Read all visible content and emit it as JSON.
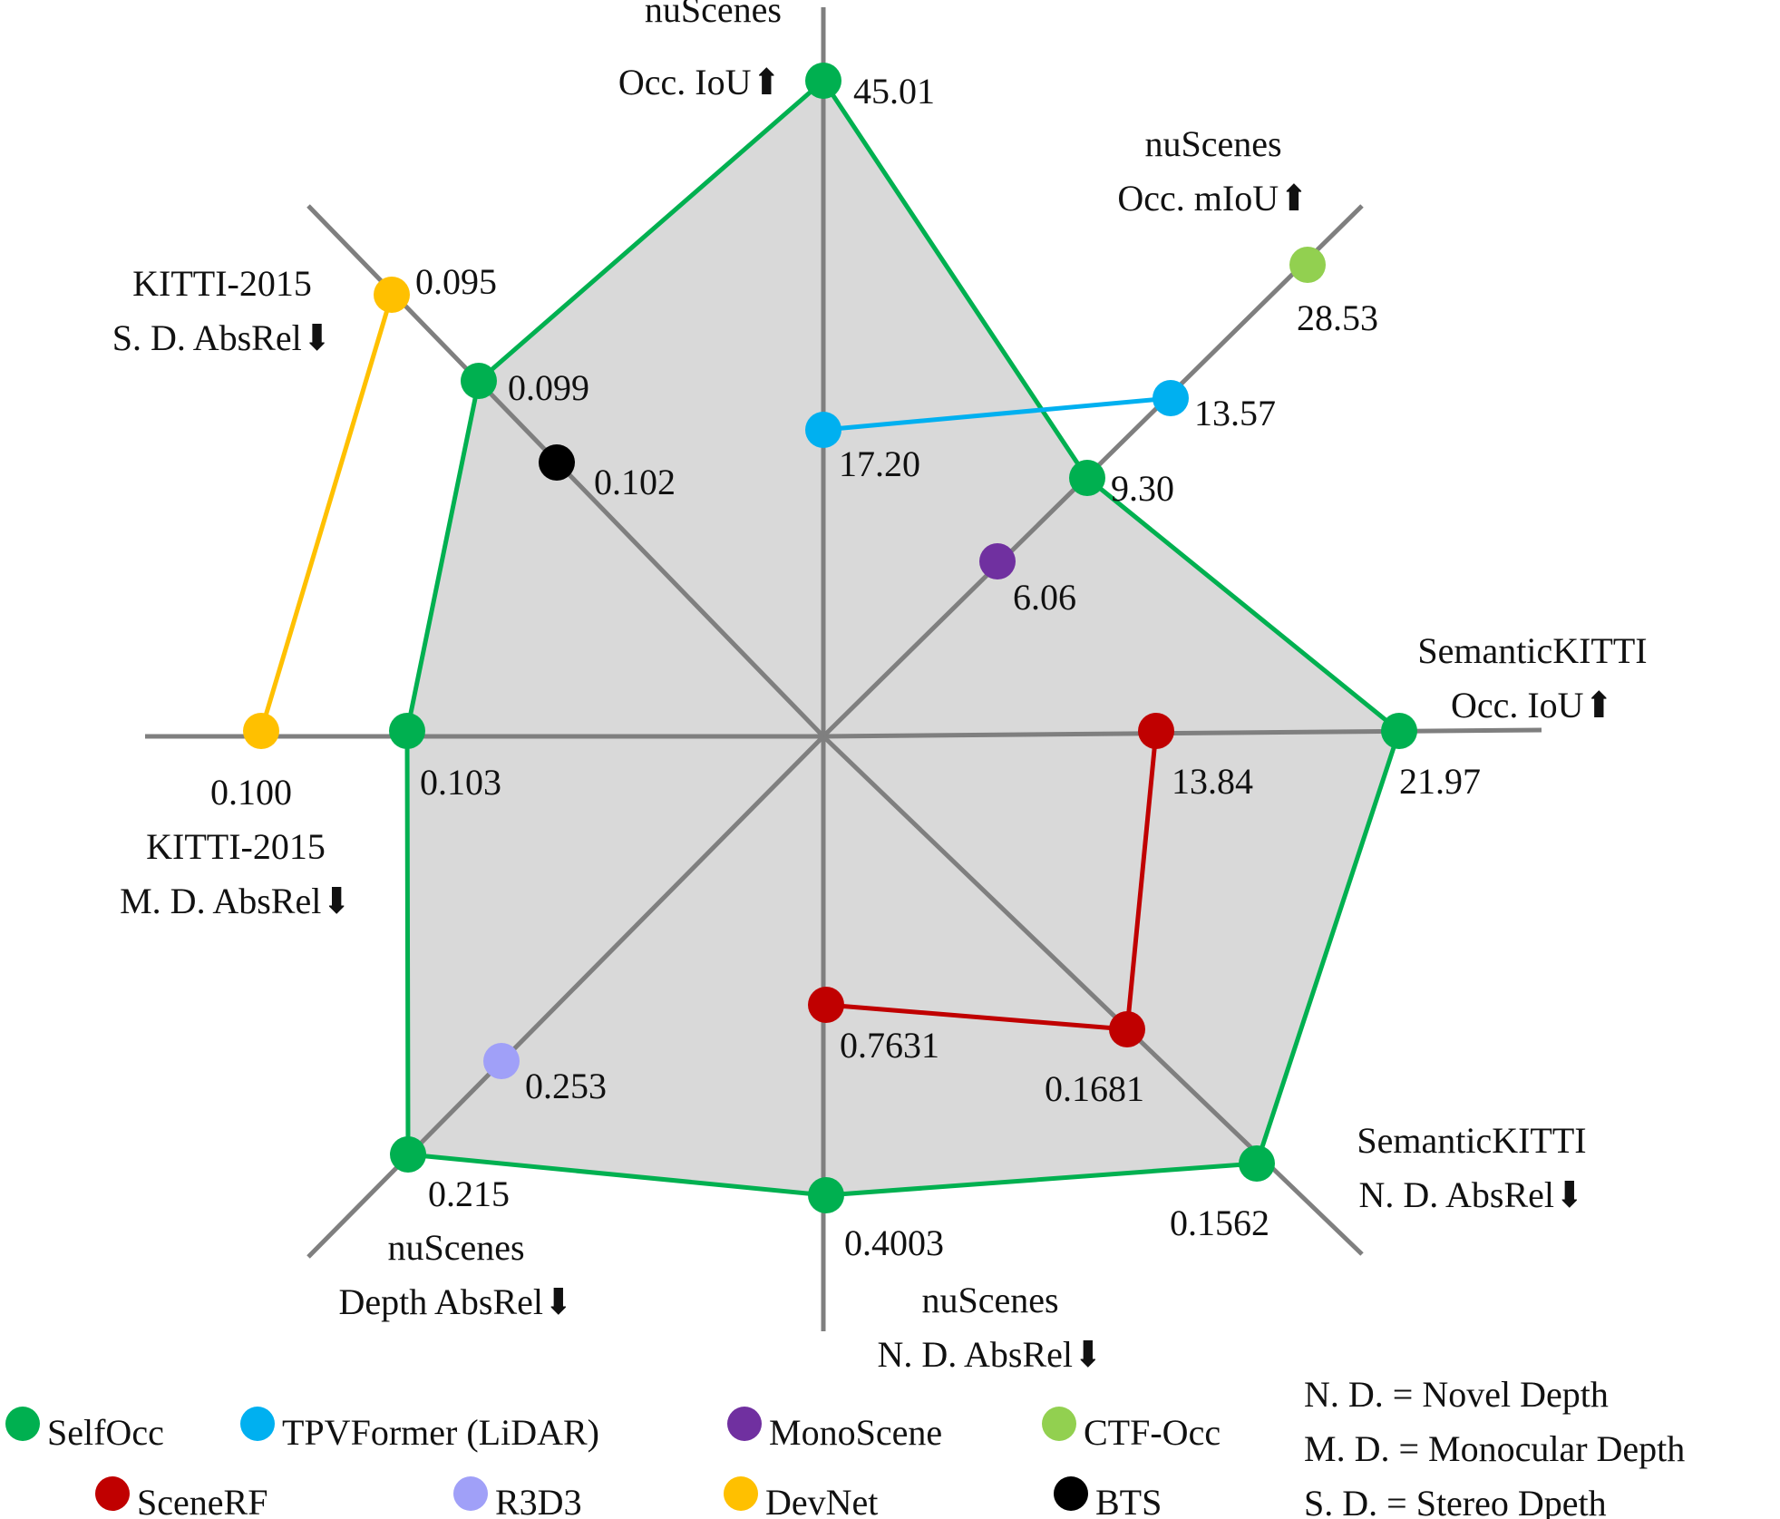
{
  "chart_data": {
    "type": "radar",
    "axes": [
      {
        "id": "nus-occ-iou",
        "lines": [
          "nuScenes",
          "Occ. IoU"
        ],
        "arrow": "up"
      },
      {
        "id": "nus-occ-miou",
        "lines": [
          "nuScenes",
          "Occ. mIoU"
        ],
        "arrow": "up"
      },
      {
        "id": "skitti-occ-iou",
        "lines": [
          "SemanticKITTI",
          "Occ. IoU"
        ],
        "arrow": "up"
      },
      {
        "id": "skitti-nd-absrel",
        "lines": [
          "SemanticKITTI",
          "N. D. AbsRel"
        ],
        "arrow": "down"
      },
      {
        "id": "nus-nd-absrel",
        "lines": [
          "nuScenes",
          "N. D. AbsRel"
        ],
        "arrow": "down"
      },
      {
        "id": "nus-depth-absrel",
        "lines": [
          "nuScenes",
          "Depth AbsRel"
        ],
        "arrow": "down"
      },
      {
        "id": "kitti-md-absrel",
        "lines": [
          "KITTI-2015",
          "M. D. AbsRel"
        ],
        "arrow": "down"
      },
      {
        "id": "kitti-sd-absrel",
        "lines": [
          "KITTI-2015",
          "S. D. AbsRel"
        ],
        "arrow": "down"
      }
    ],
    "series": [
      {
        "name": "SelfOcc",
        "color": "#00b050",
        "polygon": true,
        "points": [
          {
            "axis": 0,
            "value": 45.01,
            "label": "45.01"
          },
          {
            "axis": 1,
            "value": 9.3,
            "label": "9.30"
          },
          {
            "axis": 2,
            "value": 21.97,
            "label": "21.97"
          },
          {
            "axis": 3,
            "value": 0.1562,
            "label": "0.1562"
          },
          {
            "axis": 4,
            "value": 0.4003,
            "label": "0.4003"
          },
          {
            "axis": 5,
            "value": 0.215,
            "label": "0.215"
          },
          {
            "axis": 6,
            "value": 0.103,
            "label": "0.103"
          },
          {
            "axis": 7,
            "value": 0.099,
            "label": "0.099"
          }
        ]
      },
      {
        "name": "TPVFormer (LiDAR)",
        "color": "#00b0f0",
        "points": [
          {
            "axis": 0,
            "value": 17.2,
            "label": "17.20"
          },
          {
            "axis": 1,
            "value": 13.57,
            "label": "13.57"
          }
        ]
      },
      {
        "name": "MonoScene",
        "color": "#7030a0",
        "points": [
          {
            "axis": 1,
            "value": 6.06,
            "label": "6.06"
          }
        ]
      },
      {
        "name": "CTF-Occ",
        "color": "#92d050",
        "points": [
          {
            "axis": 1,
            "value": 28.53,
            "label": "28.53"
          }
        ]
      },
      {
        "name": "SceneRF",
        "color": "#c00000",
        "points": [
          {
            "axis": 2,
            "value": 13.84,
            "label": "13.84"
          },
          {
            "axis": 3,
            "value": 0.1681,
            "label": "0.1681"
          },
          {
            "axis": 4,
            "value": 0.7631,
            "label": "0.7631"
          }
        ]
      },
      {
        "name": "R3D3",
        "color": "#a0a0f8",
        "points": [
          {
            "axis": 5,
            "value": 0.253,
            "label": "0.253"
          }
        ]
      },
      {
        "name": "DevNet",
        "color": "#ffc000",
        "points": [
          {
            "axis": 6,
            "value": 0.1,
            "label": "0.100"
          },
          {
            "axis": 7,
            "value": 0.095,
            "label": "0.095"
          }
        ]
      },
      {
        "name": "BTS",
        "color": "#000000",
        "points": [
          {
            "axis": 7,
            "value": 0.102,
            "label": "0.102"
          }
        ]
      }
    ],
    "legend": "bottom"
  },
  "notes": [
    "N. D. = Novel Depth",
    "M. D. = Monocular Depth",
    "S. D. = Stereo Dpeth"
  ],
  "colors": {
    "axis": "#7f7f7f",
    "fill": "#d9d9d9"
  }
}
